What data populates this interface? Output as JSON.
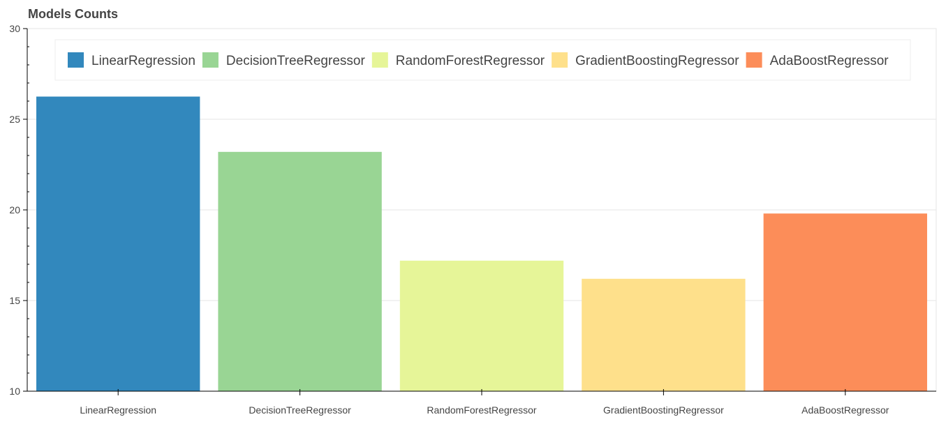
{
  "chart_data": {
    "type": "bar",
    "title": "Models Counts",
    "categories": [
      "LinearRegression",
      "DecisionTreeRegressor",
      "RandomForestRegressor",
      "GradientBoostingRegressor",
      "AdaBoostRegressor"
    ],
    "values": [
      26.25,
      23.2,
      17.2,
      16.2,
      19.8
    ],
    "colors": [
      "#3288bd",
      "#99d594",
      "#e6f598",
      "#fee08b",
      "#fc8d59"
    ],
    "ylim": [
      10,
      30
    ],
    "yticks": [
      10,
      15,
      20,
      25,
      30
    ],
    "xlabel": "",
    "ylabel": "",
    "legend": {
      "placement": "top",
      "entries": [
        "LinearRegression",
        "DecisionTreeRegressor",
        "RandomForestRegressor",
        "GradientBoostingRegressor",
        "AdaBoostRegressor"
      ]
    },
    "grid": true
  }
}
